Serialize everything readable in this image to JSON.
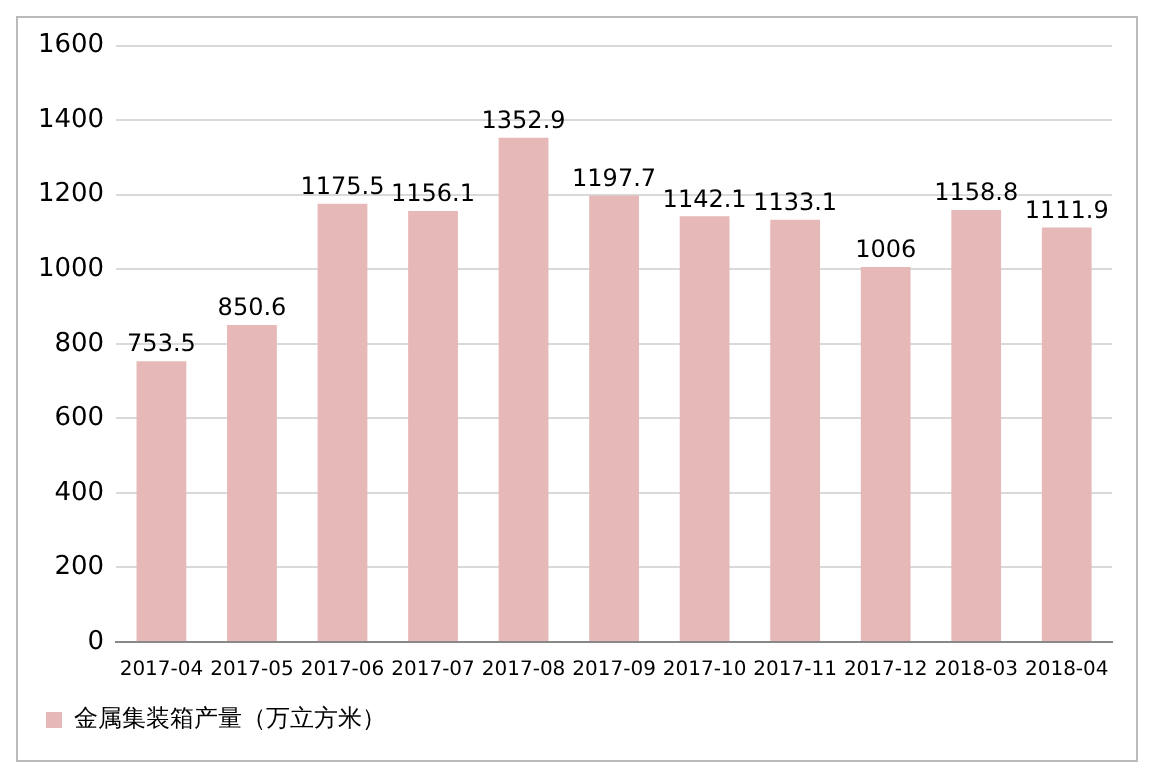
{
  "chart_data": {
    "type": "bar",
    "categories": [
      "2017-04",
      "2017-05",
      "2017-06",
      "2017-07",
      "2017-08",
      "2017-09",
      "2017-10",
      "2017-11",
      "2017-12",
      "2018-03",
      "2018-04"
    ],
    "series": [
      {
        "name": "金属集装箱产量（万立方米）",
        "color": "#e6b9b8",
        "values": [
          753.5,
          850.6,
          1175.5,
          1156.1,
          1352.9,
          1197.7,
          1142.1,
          1133.1,
          1006,
          1158.8,
          1111.9
        ]
      }
    ],
    "ylim": [
      0,
      1600
    ],
    "yticks": [
      0,
      200,
      400,
      600,
      800,
      1000,
      1200,
      1400,
      1600
    ],
    "grid": "y",
    "legend": "bottom left",
    "data_labels": true
  }
}
